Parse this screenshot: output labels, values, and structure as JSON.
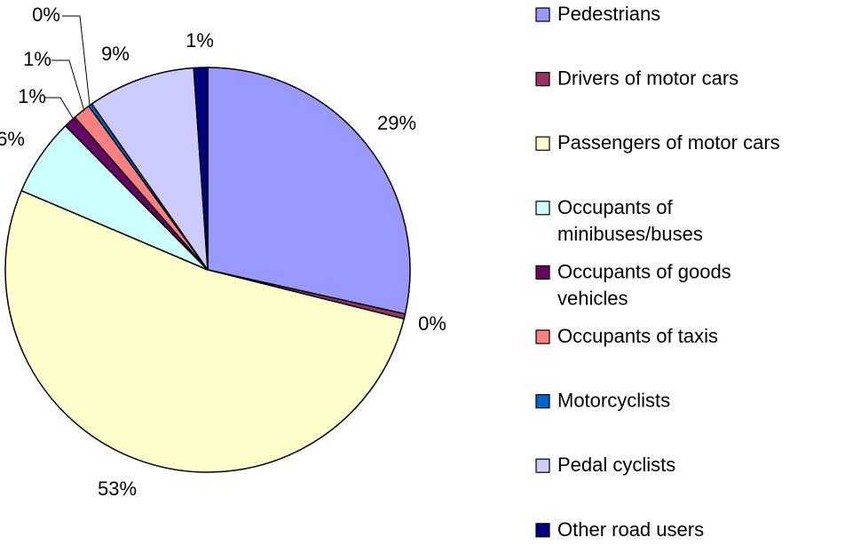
{
  "chart_data": {
    "type": "pie",
    "categories": [
      "Pedestrians",
      "Drivers of motor cars",
      "Passengers of motor cars",
      "Occupants of minibuses/buses",
      "Occupants of goods vehicles",
      "Occupants of taxis",
      "Motorcyclists",
      "Pedal cyclists",
      "Other road users"
    ],
    "values": [
      28.5,
      0.4,
      52.5,
      6.2,
      1.0,
      1.4,
      0.3,
      8.6,
      1.1
    ],
    "value_labels": [
      "29%",
      "0%",
      "53%",
      "6%",
      "1%",
      "1%",
      "0%",
      "9%",
      "1%"
    ],
    "colors": [
      "#9999ff",
      "#993366",
      "#ffffcc",
      "#ccffff",
      "#660066",
      "#ff8080",
      "#0066cc",
      "#ccccff",
      "#000080"
    ],
    "legend": "right"
  }
}
